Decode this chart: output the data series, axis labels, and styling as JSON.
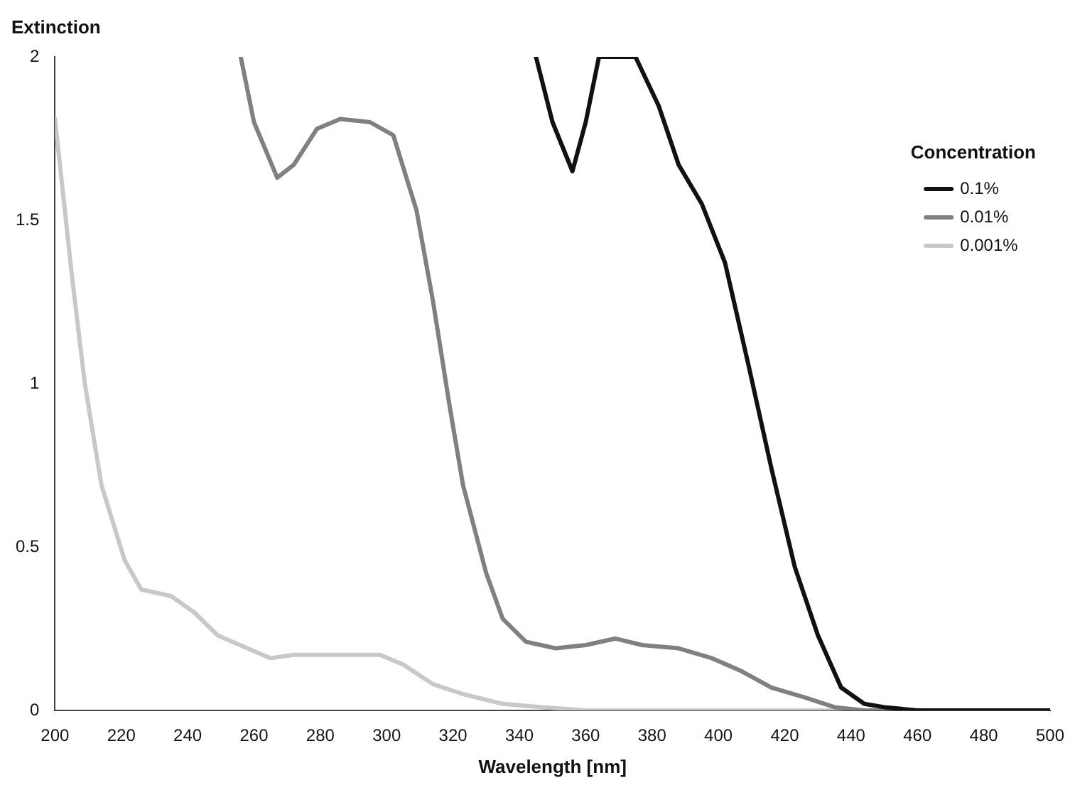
{
  "chart_data": {
    "type": "line",
    "xlabel": "Wavelength [nm]",
    "ylabel": "Extinction",
    "legend_title": "Concentration",
    "legend": "top right",
    "grid": false,
    "marker": "none",
    "line_style": "solid",
    "xlim": [
      200,
      500
    ],
    "xticks": [
      200,
      220,
      240,
      260,
      280,
      300,
      320,
      340,
      360,
      380,
      400,
      420,
      440,
      460,
      480,
      500
    ],
    "ylim": [
      0,
      2
    ],
    "yticks": [
      0,
      0.5,
      1,
      1.5,
      2
    ],
    "series": [
      {
        "name": "0.1%",
        "color": "#111111",
        "x": [
          345,
          350,
          356,
          360,
          364,
          375,
          382,
          388,
          395,
          402,
          409,
          416,
          423,
          430,
          437,
          444,
          450,
          460,
          500
        ],
        "values": [
          2,
          1.8,
          1.65,
          1.8,
          2,
          2,
          1.85,
          1.67,
          1.55,
          1.37,
          1.06,
          0.74,
          0.44,
          0.23,
          0.07,
          0.02,
          0.01,
          0,
          0
        ]
      },
      {
        "name": "0.01%",
        "color": "#808080",
        "x": [
          256,
          260,
          267,
          272,
          279,
          286,
          295,
          302,
          309,
          314,
          319,
          323,
          330,
          335,
          342,
          351,
          360,
          369,
          377,
          388,
          398,
          407,
          416,
          426,
          435,
          444,
          500
        ],
        "values": [
          2,
          1.8,
          1.63,
          1.67,
          1.78,
          1.81,
          1.8,
          1.76,
          1.53,
          1.25,
          0.93,
          0.69,
          0.42,
          0.28,
          0.21,
          0.19,
          0.2,
          0.22,
          0.2,
          0.19,
          0.16,
          0.12,
          0.07,
          0.04,
          0.01,
          0,
          0
        ]
      },
      {
        "name": "0.001%",
        "color": "#c8c8c8",
        "x": [
          200,
          205,
          209,
          214,
          221,
          226,
          235,
          242,
          249,
          258,
          265,
          272,
          286,
          298,
          305,
          314,
          323,
          335,
          347,
          360,
          500
        ],
        "values": [
          1.81,
          1.34,
          1,
          0.69,
          0.46,
          0.37,
          0.35,
          0.3,
          0.23,
          0.19,
          0.16,
          0.17,
          0.17,
          0.17,
          0.14,
          0.08,
          0.05,
          0.02,
          0.01,
          0,
          0
        ]
      }
    ]
  }
}
